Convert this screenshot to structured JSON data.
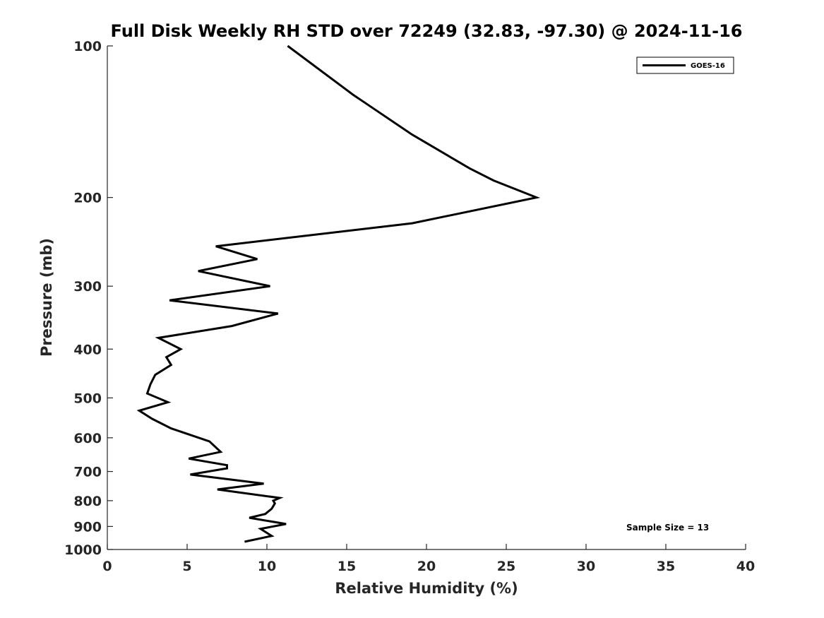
{
  "chart_data": {
    "type": "line",
    "title": "Full Disk Weekly RH STD over 72249 (32.83, -97.30) @ 2024-11-16",
    "xlabel": "Relative Humidity (%)",
    "ylabel": "Pressure (mb)",
    "xlim": [
      0,
      40
    ],
    "ylim": [
      100,
      1000
    ],
    "y_scale": "log",
    "y_inverted": true,
    "x_ticks": [
      0,
      5,
      10,
      15,
      20,
      25,
      30,
      35,
      40
    ],
    "y_ticks": [
      100,
      200,
      300,
      400,
      500,
      600,
      700,
      800,
      900,
      1000
    ],
    "grid": false,
    "legend_position": "top-right",
    "annotation": "Sample Size = 13",
    "colors": {
      "series": "#000000",
      "axis": "#262626"
    },
    "series": [
      {
        "name": "GOES-16",
        "x": [
          11.3,
          15.4,
          19.1,
          22.7,
          24.2,
          26.9,
          19.1,
          6.8,
          9.4,
          5.7,
          10.2,
          3.9,
          10.7,
          7.8,
          3.2,
          4.6,
          3.7,
          4.0,
          3.0,
          2.7,
          2.5,
          3.8,
          2.0,
          2.8,
          4.0,
          6.4,
          7.1,
          5.1,
          7.5,
          7.5,
          5.2,
          9.8,
          6.9,
          10.8,
          10.4,
          10.5,
          10.3,
          9.9,
          8.9,
          11.2,
          9.6,
          10.3,
          8.6
        ],
        "y": [
          100,
          125,
          150,
          175,
          185,
          200,
          225,
          250,
          265,
          280,
          300,
          320,
          340,
          360,
          380,
          400,
          415,
          430,
          450,
          470,
          490,
          510,
          530,
          550,
          575,
          610,
          640,
          660,
          680,
          690,
          710,
          740,
          760,
          790,
          800,
          810,
          830,
          850,
          865,
          890,
          910,
          940,
          965
        ]
      }
    ]
  }
}
